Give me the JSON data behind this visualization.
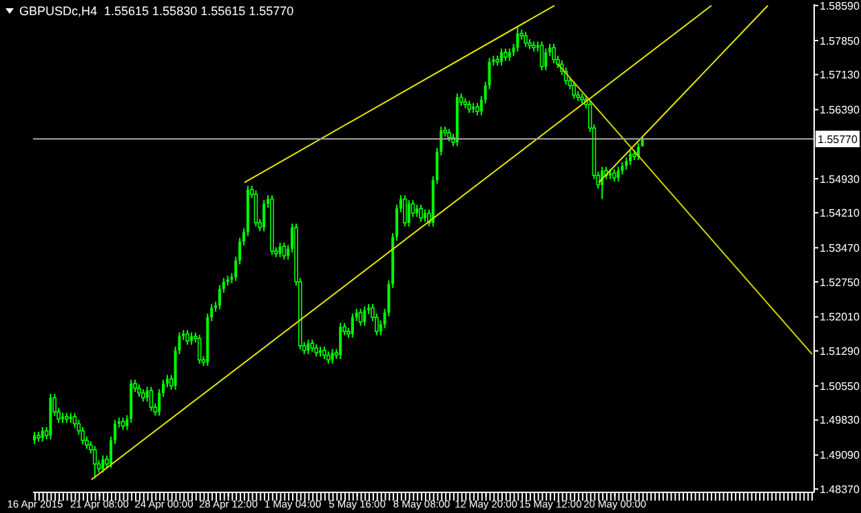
{
  "chart_data": {
    "type": "candlestick",
    "title": "GBPUSDc,H4  1.55615 1.55830 1.55615 1.55770",
    "color": "#00ff00",
    "categories": [
      "16 Apr 2015",
      null,
      null,
      null,
      null,
      null,
      null,
      null,
      null,
      null,
      null,
      null,
      null,
      null,
      null,
      null,
      "21 Apr 08:00",
      null,
      null,
      null,
      null,
      null,
      null,
      null,
      null,
      null,
      null,
      null,
      null,
      null,
      null,
      null,
      "24 Apr 00:00",
      null,
      null,
      null,
      null,
      null,
      null,
      null,
      null,
      null,
      null,
      null,
      null,
      null,
      null,
      null,
      "28 Apr 12:00",
      null,
      null,
      null,
      null,
      null,
      null,
      null,
      null,
      null,
      null,
      null,
      null,
      null,
      null,
      null,
      "1 May 04:00",
      null,
      null,
      null,
      null,
      null,
      null,
      null,
      null,
      null,
      null,
      null,
      null,
      null,
      null,
      null,
      "5 May 16:00",
      null,
      null,
      null,
      null,
      null,
      null,
      null,
      null,
      null,
      null,
      null,
      null,
      null,
      null,
      null,
      "8 May 08:00",
      null,
      null,
      null,
      null,
      null,
      null,
      null,
      null,
      null,
      null,
      null,
      null,
      null,
      null,
      null,
      "12 May 20:00",
      null,
      null,
      null,
      null,
      null,
      null,
      null,
      null,
      null,
      null,
      null,
      null,
      null,
      null,
      null,
      "15 May 12:00",
      null,
      null,
      null,
      null,
      null,
      null,
      null,
      null,
      null,
      null,
      null,
      null,
      null,
      null,
      null,
      "20 May 00:00",
      null,
      null,
      null,
      null,
      null,
      null,
      null,
      null,
      null,
      null,
      null,
      null,
      null,
      null,
      null,
      null,
      null,
      null,
      null,
      null,
      null,
      null,
      null,
      null,
      null,
      null,
      null,
      null,
      null,
      null,
      null,
      null,
      null,
      null,
      null,
      null,
      null,
      null,
      null,
      null,
      null,
      null,
      null,
      null,
      null,
      null,
      null,
      null,
      null
    ],
    "ohlc": [
      [
        1.494,
        1.4958,
        1.4932,
        1.495
      ],
      [
        1.495,
        1.4958,
        1.4937,
        1.4945
      ],
      [
        1.4945,
        1.4968,
        1.4937,
        1.496
      ],
      [
        1.496,
        1.4968,
        1.4942,
        1.495
      ],
      [
        1.495,
        1.5038,
        1.4942,
        1.503
      ],
      [
        1.503,
        1.5038,
        1.4992,
        1.5
      ],
      [
        1.5,
        1.5008,
        1.4977,
        1.4985
      ],
      [
        1.4985,
        1.4998,
        1.4977,
        1.499
      ],
      [
        1.499,
        1.4998,
        1.4977,
        1.4985
      ],
      [
        1.4985,
        1.4998,
        1.4977,
        1.499
      ],
      [
        1.499,
        1.4998,
        1.4967,
        1.4975
      ],
      [
        1.4975,
        1.4983,
        1.4952,
        1.496
      ],
      [
        1.496,
        1.4968,
        1.4932,
        1.494
      ],
      [
        1.494,
        1.4948,
        1.4922,
        1.493
      ],
      [
        1.493,
        1.4938,
        1.4912,
        1.492
      ],
      [
        1.492,
        1.4928,
        1.486,
        1.489
      ],
      [
        1.489,
        1.4898,
        1.4872,
        1.488
      ],
      [
        1.488,
        1.4908,
        1.4872,
        1.49
      ],
      [
        1.49,
        1.4908,
        1.4882,
        1.489
      ],
      [
        1.489,
        1.4948,
        1.4882,
        1.494
      ],
      [
        1.494,
        1.4983,
        1.4932,
        1.4975
      ],
      [
        1.4975,
        1.4988,
        1.4967,
        1.498
      ],
      [
        1.498,
        1.4988,
        1.4962,
        1.497
      ],
      [
        1.497,
        1.4993,
        1.4962,
        1.4985
      ],
      [
        1.4985,
        1.5068,
        1.4977,
        1.506
      ],
      [
        1.506,
        1.5068,
        1.5042,
        1.505
      ],
      [
        1.505,
        1.5058,
        1.5032,
        1.504
      ],
      [
        1.504,
        1.5048,
        1.5022,
        1.503
      ],
      [
        1.503,
        1.5053,
        1.5022,
        1.5045
      ],
      [
        1.5045,
        1.5053,
        1.5002,
        1.501
      ],
      [
        1.501,
        1.5018,
        1.4992,
        1.5
      ],
      [
        1.5,
        1.5048,
        1.4992,
        1.504
      ],
      [
        1.504,
        1.5068,
        1.5032,
        1.506
      ],
      [
        1.506,
        1.5078,
        1.5052,
        1.507
      ],
      [
        1.507,
        1.5078,
        1.5047,
        1.5055
      ],
      [
        1.5055,
        1.5138,
        1.5047,
        1.513
      ],
      [
        1.513,
        1.5168,
        1.5122,
        1.516
      ],
      [
        1.516,
        1.5173,
        1.5152,
        1.5165
      ],
      [
        1.5165,
        1.5173,
        1.5142,
        1.515
      ],
      [
        1.515,
        1.5168,
        1.5142,
        1.516
      ],
      [
        1.516,
        1.5168,
        1.5147,
        1.5155
      ],
      [
        1.5155,
        1.5163,
        1.5102,
        1.511
      ],
      [
        1.511,
        1.5118,
        1.5097,
        1.5105
      ],
      [
        1.5105,
        1.5208,
        1.5097,
        1.52
      ],
      [
        1.52,
        1.5228,
        1.5192,
        1.522
      ],
      [
        1.522,
        1.5233,
        1.5212,
        1.5225
      ],
      [
        1.5225,
        1.5268,
        1.5217,
        1.526
      ],
      [
        1.526,
        1.5283,
        1.5252,
        1.5275
      ],
      [
        1.5275,
        1.5288,
        1.5267,
        1.528
      ],
      [
        1.528,
        1.5293,
        1.5272,
        1.5285
      ],
      [
        1.5285,
        1.5328,
        1.5277,
        1.532
      ],
      [
        1.532,
        1.5368,
        1.5312,
        1.536
      ],
      [
        1.536,
        1.5388,
        1.5352,
        1.538
      ],
      [
        1.538,
        1.5478,
        1.5372,
        1.547
      ],
      [
        1.547,
        1.5478,
        1.5452,
        1.546
      ],
      [
        1.546,
        1.5468,
        1.5392,
        1.54
      ],
      [
        1.54,
        1.5408,
        1.5382,
        1.539
      ],
      [
        1.539,
        1.5448,
        1.5382,
        1.544
      ],
      [
        1.544,
        1.5458,
        1.5432,
        1.545
      ],
      [
        1.545,
        1.5458,
        1.5332,
        1.534
      ],
      [
        1.534,
        1.5348,
        1.5327,
        1.5335
      ],
      [
        1.5335,
        1.5358,
        1.5327,
        1.535
      ],
      [
        1.535,
        1.5358,
        1.5322,
        1.533
      ],
      [
        1.533,
        1.5353,
        1.5322,
        1.5345
      ],
      [
        1.5345,
        1.5398,
        1.5337,
        1.539
      ],
      [
        1.539,
        1.5398,
        1.5267,
        1.5275
      ],
      [
        1.5275,
        1.5283,
        1.5132,
        1.514
      ],
      [
        1.514,
        1.5148,
        1.5122,
        1.513
      ],
      [
        1.513,
        1.5153,
        1.5122,
        1.5145
      ],
      [
        1.5145,
        1.5153,
        1.5127,
        1.5135
      ],
      [
        1.5135,
        1.5143,
        1.5117,
        1.5125
      ],
      [
        1.5125,
        1.5138,
        1.5117,
        1.513
      ],
      [
        1.513,
        1.5138,
        1.5112,
        1.512
      ],
      [
        1.512,
        1.5128,
        1.5102,
        1.511
      ],
      [
        1.511,
        1.5133,
        1.5102,
        1.5125
      ],
      [
        1.5125,
        1.5133,
        1.5112,
        1.512
      ],
      [
        1.512,
        1.5188,
        1.5112,
        1.518
      ],
      [
        1.518,
        1.5188,
        1.5162,
        1.517
      ],
      [
        1.517,
        1.5178,
        1.5157,
        1.5165
      ],
      [
        1.5165,
        1.5208,
        1.5157,
        1.52
      ],
      [
        1.52,
        1.5218,
        1.5192,
        1.521
      ],
      [
        1.521,
        1.5218,
        1.5182,
        1.519
      ],
      [
        1.519,
        1.5223,
        1.5182,
        1.5215
      ],
      [
        1.5215,
        1.5228,
        1.5207,
        1.522
      ],
      [
        1.522,
        1.5228,
        1.5192,
        1.52
      ],
      [
        1.52,
        1.5208,
        1.5162,
        1.517
      ],
      [
        1.517,
        1.5193,
        1.5162,
        1.5185
      ],
      [
        1.5185,
        1.5218,
        1.5177,
        1.521
      ],
      [
        1.521,
        1.5278,
        1.5202,
        1.527
      ],
      [
        1.527,
        1.5378,
        1.5262,
        1.537
      ],
      [
        1.537,
        1.5438,
        1.5362,
        1.543
      ],
      [
        1.543,
        1.5458,
        1.5422,
        1.545
      ],
      [
        1.545,
        1.5458,
        1.5392,
        1.54
      ],
      [
        1.54,
        1.5448,
        1.5392,
        1.544
      ],
      [
        1.544,
        1.5448,
        1.5412,
        1.542
      ],
      [
        1.542,
        1.5438,
        1.5412,
        1.543
      ],
      [
        1.543,
        1.5438,
        1.5402,
        1.541
      ],
      [
        1.541,
        1.5428,
        1.5402,
        1.542
      ],
      [
        1.542,
        1.5428,
        1.5392,
        1.54
      ],
      [
        1.54,
        1.5498,
        1.5392,
        1.549
      ],
      [
        1.549,
        1.5558,
        1.5482,
        1.555
      ],
      [
        1.555,
        1.5603,
        1.5542,
        1.5595
      ],
      [
        1.5595,
        1.5603,
        1.5582,
        1.559
      ],
      [
        1.559,
        1.5598,
        1.5572,
        1.558
      ],
      [
        1.558,
        1.5588,
        1.5562,
        1.557
      ],
      [
        1.557,
        1.5673,
        1.5562,
        1.5665
      ],
      [
        1.5665,
        1.5673,
        1.5647,
        1.5655
      ],
      [
        1.5655,
        1.5663,
        1.5642,
        1.565
      ],
      [
        1.565,
        1.5658,
        1.5632,
        1.564
      ],
      [
        1.564,
        1.5653,
        1.5632,
        1.5645
      ],
      [
        1.5645,
        1.5653,
        1.5627,
        1.5635
      ],
      [
        1.5635,
        1.5668,
        1.5627,
        1.566
      ],
      [
        1.566,
        1.5698,
        1.5652,
        1.569
      ],
      [
        1.569,
        1.5748,
        1.5682,
        1.574
      ],
      [
        1.574,
        1.5753,
        1.5732,
        1.5745
      ],
      [
        1.5745,
        1.5753,
        1.5732,
        1.574
      ],
      [
        1.574,
        1.5768,
        1.5732,
        1.576
      ],
      [
        1.576,
        1.5768,
        1.5742,
        1.575
      ],
      [
        1.575,
        1.5768,
        1.5742,
        1.576
      ],
      [
        1.576,
        1.5778,
        1.5752,
        1.577
      ],
      [
        1.577,
        1.5813,
        1.5762,
        1.58
      ],
      [
        1.58,
        1.5808,
        1.5787,
        1.5795
      ],
      [
        1.5795,
        1.5803,
        1.5772,
        1.578
      ],
      [
        1.578,
        1.5788,
        1.5767,
        1.5775
      ],
      [
        1.5775,
        1.5783,
        1.5762,
        1.577
      ],
      [
        1.577,
        1.5783,
        1.5762,
        1.5775
      ],
      [
        1.5775,
        1.5783,
        1.5722,
        1.573
      ],
      [
        1.573,
        1.5768,
        1.5722,
        1.576
      ],
      [
        1.576,
        1.5778,
        1.5752,
        1.577
      ],
      [
        1.577,
        1.5778,
        1.5737,
        1.5745
      ],
      [
        1.5745,
        1.5753,
        1.5727,
        1.5735
      ],
      [
        1.5735,
        1.5743,
        1.5712,
        1.572
      ],
      [
        1.572,
        1.5728,
        1.5692,
        1.57
      ],
      [
        1.57,
        1.5708,
        1.5682,
        1.569
      ],
      [
        1.569,
        1.5698,
        1.5662,
        1.567
      ],
      [
        1.567,
        1.5678,
        1.5657,
        1.5665
      ],
      [
        1.5665,
        1.5673,
        1.5652,
        1.566
      ],
      [
        1.566,
        1.5668,
        1.5642,
        1.565
      ],
      [
        1.565,
        1.5658,
        1.5592,
        1.56
      ],
      [
        1.56,
        1.5608,
        1.5492,
        1.55
      ],
      [
        1.55,
        1.5508,
        1.5472,
        1.548
      ],
      [
        1.548,
        1.5518,
        1.545,
        1.551
      ],
      [
        1.551,
        1.5518,
        1.5492,
        1.55
      ],
      [
        1.55,
        1.5513,
        1.5492,
        1.5505
      ],
      [
        1.5505,
        1.5513,
        1.5487,
        1.5495
      ],
      [
        1.5495,
        1.5518,
        1.5487,
        1.551
      ],
      [
        1.551,
        1.5528,
        1.5502,
        1.552
      ],
      [
        1.552,
        1.5538,
        1.5512,
        1.553
      ],
      [
        1.553,
        1.5553,
        1.5522,
        1.5545
      ],
      [
        1.5545,
        1.5553,
        1.5532,
        1.554
      ],
      [
        1.554,
        1.5568,
        1.5532,
        1.556
      ],
      [
        1.55615,
        1.5583,
        1.55615,
        1.5577
      ],
      null,
      null,
      null,
      null,
      null,
      null,
      null,
      null,
      null,
      null,
      null,
      null,
      null,
      null,
      null,
      null,
      null,
      null,
      null,
      null,
      null,
      null,
      null,
      null,
      null,
      null,
      null,
      null,
      null,
      null,
      null,
      null,
      null,
      null,
      null,
      null,
      null,
      null,
      null,
      null,
      null,
      null
    ],
    "series": [
      {
        "type": "line",
        "color": "#e6e600",
        "values": [
          null,
          null,
          null,
          null,
          null,
          null,
          null,
          null,
          null,
          null,
          null,
          null,
          null,
          null,
          null,
          null,
          null,
          null,
          null,
          null,
          null,
          null,
          null,
          null,
          null,
          null,
          null,
          null,
          null,
          null,
          null,
          null,
          null,
          null,
          null,
          null,
          null,
          null,
          null,
          null,
          null,
          null,
          null,
          null,
          null,
          null,
          null,
          null,
          null,
          null,
          null,
          null,
          1.5485,
          null,
          null,
          null,
          null,
          null,
          null,
          null,
          null,
          null,
          null,
          null,
          null,
          null,
          null,
          null,
          null,
          null,
          null,
          null,
          null,
          null,
          null,
          null,
          null,
          null,
          null,
          null,
          null,
          null,
          null,
          null,
          null,
          null,
          null,
          null,
          null,
          null,
          null,
          null,
          null,
          null,
          null,
          null,
          null,
          null,
          null,
          null,
          null,
          null,
          null,
          null,
          null,
          null,
          null,
          null,
          null,
          null,
          null,
          null,
          null,
          null,
          null,
          null,
          null,
          null,
          null,
          null,
          null,
          null,
          null,
          null,
          null,
          null,
          null,
          null,
          null,
          1.5859,
          null,
          null,
          null,
          null,
          null,
          null,
          null,
          null,
          null,
          null,
          null,
          null,
          null,
          null,
          null,
          null,
          null,
          null,
          null,
          null,
          null,
          null,
          null,
          null,
          null,
          null,
          null,
          null,
          null,
          null,
          null,
          null,
          null,
          null,
          null,
          null,
          null,
          null,
          null,
          null,
          null,
          null,
          null,
          null,
          null,
          null,
          null,
          null,
          null,
          null,
          null,
          null,
          null,
          null,
          null,
          null,
          null,
          null,
          null,
          null,
          null,
          null,
          null,
          null
        ]
      },
      {
        "type": "line",
        "color": "#e6e600",
        "values": [
          null,
          null,
          null,
          null,
          null,
          null,
          null,
          null,
          null,
          null,
          null,
          null,
          null,
          null,
          1.4857,
          null,
          null,
          null,
          null,
          null,
          null,
          null,
          null,
          null,
          null,
          null,
          null,
          null,
          null,
          null,
          null,
          null,
          null,
          null,
          null,
          null,
          null,
          null,
          null,
          null,
          null,
          null,
          null,
          null,
          null,
          null,
          null,
          null,
          null,
          null,
          null,
          null,
          null,
          null,
          null,
          null,
          null,
          null,
          null,
          null,
          null,
          null,
          null,
          null,
          null,
          null,
          null,
          null,
          null,
          null,
          null,
          null,
          null,
          null,
          null,
          null,
          null,
          null,
          null,
          null,
          null,
          null,
          null,
          null,
          null,
          null,
          null,
          null,
          null,
          null,
          null,
          null,
          null,
          null,
          null,
          null,
          null,
          null,
          null,
          null,
          null,
          null,
          null,
          null,
          null,
          null,
          null,
          null,
          null,
          null,
          null,
          null,
          null,
          null,
          null,
          null,
          null,
          null,
          null,
          null,
          null,
          null,
          null,
          null,
          null,
          null,
          null,
          null,
          null,
          null,
          null,
          null,
          null,
          null,
          null,
          null,
          null,
          null,
          null,
          null,
          null,
          null,
          null,
          null,
          null,
          null,
          null,
          null,
          null,
          null,
          null,
          null,
          null,
          null,
          null,
          null,
          null,
          null,
          null,
          null,
          null,
          null,
          null,
          null,
          null,
          null,
          null,
          null,
          1.5859,
          null,
          null,
          null,
          null,
          null,
          null,
          null,
          null,
          null,
          null,
          null,
          null,
          null,
          null,
          null,
          null,
          null,
          null,
          null,
          null,
          null,
          null,
          null,
          null,
          null
        ]
      },
      {
        "type": "line",
        "color": "#e6e600",
        "values": [
          null,
          null,
          null,
          null,
          null,
          null,
          null,
          null,
          null,
          null,
          null,
          null,
          null,
          null,
          null,
          null,
          null,
          null,
          null,
          null,
          null,
          null,
          null,
          null,
          null,
          null,
          null,
          null,
          null,
          null,
          null,
          null,
          null,
          null,
          null,
          null,
          null,
          null,
          null,
          null,
          null,
          null,
          null,
          null,
          null,
          null,
          null,
          null,
          null,
          null,
          null,
          null,
          null,
          null,
          null,
          null,
          null,
          null,
          null,
          null,
          null,
          null,
          null,
          null,
          null,
          null,
          null,
          null,
          null,
          null,
          null,
          null,
          null,
          null,
          null,
          null,
          null,
          null,
          null,
          null,
          null,
          null,
          null,
          null,
          null,
          null,
          null,
          null,
          null,
          null,
          null,
          null,
          null,
          null,
          null,
          null,
          null,
          null,
          null,
          null,
          null,
          null,
          null,
          null,
          null,
          null,
          null,
          null,
          null,
          null,
          null,
          null,
          null,
          null,
          null,
          null,
          null,
          null,
          null,
          null,
          null,
          null,
          null,
          null,
          null,
          null,
          null,
          null,
          null,
          null,
          null,
          null,
          null,
          null,
          null,
          null,
          null,
          null,
          null,
          null,
          1.5485,
          null,
          null,
          null,
          null,
          null,
          null,
          null,
          null,
          null,
          null,
          null,
          null,
          null,
          null,
          null,
          null,
          null,
          null,
          null,
          null,
          null,
          null,
          null,
          null,
          null,
          null,
          null,
          null,
          null,
          null,
          null,
          null,
          null,
          null,
          null,
          null,
          null,
          null,
          null,
          null,
          null,
          1.5859,
          null,
          null,
          null,
          null,
          null,
          null,
          null,
          null,
          null,
          null,
          null
        ]
      },
      {
        "type": "line",
        "color": "#d2d200",
        "values": [
          null,
          null,
          null,
          null,
          null,
          null,
          null,
          null,
          null,
          null,
          null,
          null,
          null,
          null,
          null,
          null,
          null,
          null,
          null,
          null,
          null,
          null,
          null,
          null,
          null,
          null,
          null,
          null,
          null,
          null,
          null,
          null,
          null,
          null,
          null,
          null,
          null,
          null,
          null,
          null,
          null,
          null,
          null,
          null,
          null,
          null,
          null,
          null,
          null,
          null,
          null,
          null,
          null,
          null,
          null,
          null,
          null,
          null,
          null,
          null,
          null,
          null,
          null,
          null,
          null,
          null,
          null,
          null,
          null,
          null,
          null,
          null,
          null,
          null,
          null,
          null,
          null,
          null,
          null,
          null,
          null,
          null,
          null,
          null,
          null,
          null,
          null,
          null,
          null,
          null,
          null,
          null,
          null,
          null,
          null,
          null,
          null,
          null,
          null,
          null,
          null,
          null,
          null,
          null,
          null,
          null,
          null,
          null,
          null,
          null,
          null,
          null,
          null,
          null,
          null,
          null,
          null,
          null,
          null,
          null,
          null,
          null,
          null,
          null,
          null,
          null,
          null,
          null,
          null,
          null,
          1.5734,
          null,
          null,
          null,
          null,
          null,
          null,
          null,
          null,
          null,
          null,
          null,
          null,
          null,
          null,
          null,
          null,
          null,
          null,
          null,
          null,
          null,
          null,
          null,
          null,
          null,
          null,
          null,
          null,
          null,
          null,
          null,
          null,
          null,
          null,
          null,
          null,
          null,
          null,
          null,
          null,
          null,
          null,
          null,
          null,
          null,
          null,
          null,
          null,
          null,
          null,
          null,
          null,
          null,
          null,
          null,
          null,
          null,
          null,
          null,
          null,
          null,
          null,
          1.5122
        ]
      }
    ],
    "ylim": [
      1.483,
      1.5862
    ],
    "yticks": [
      {
        "value": 1.5859,
        "label": "1.58590"
      },
      {
        "value": 1.5785,
        "label": "1.57850"
      },
      {
        "value": 1.5713,
        "label": "1.57130"
      },
      {
        "value": 1.5639,
        "label": "1.56390"
      },
      {
        "value": 1.5493,
        "label": "1.54930"
      },
      {
        "value": 1.5421,
        "label": "1.54210"
      },
      {
        "value": 1.5347,
        "label": "1.53470"
      },
      {
        "value": 1.5275,
        "label": "1.52750"
      },
      {
        "value": 1.5201,
        "label": "1.52010"
      },
      {
        "value": 1.5129,
        "label": "1.51290"
      },
      {
        "value": 1.5055,
        "label": "1.50550"
      },
      {
        "value": 1.4983,
        "label": "1.49830"
      },
      {
        "value": 1.4909,
        "label": "1.49090"
      },
      {
        "value": 1.4837,
        "label": "1.48370"
      }
    ],
    "ref_lines": [
      {
        "axis": "y",
        "value": 1.5577,
        "label": "1.55770",
        "color": "#a0a0a0"
      }
    ]
  }
}
